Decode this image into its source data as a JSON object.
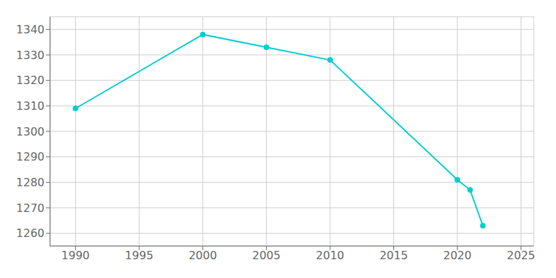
{
  "chart_data": {
    "type": "line",
    "x": [
      1990,
      2000,
      2005,
      2010,
      2020,
      2021,
      2022
    ],
    "values": [
      1309,
      1338,
      1333,
      1328,
      1281,
      1277,
      1263
    ],
    "color": "#00CED1",
    "marker": "circle",
    "xlim": [
      1988,
      2026
    ],
    "ylim": [
      1255,
      1345
    ],
    "xticks": [
      1990,
      1995,
      2000,
      2005,
      2010,
      2015,
      2020,
      2025
    ],
    "yticks": [
      1260,
      1270,
      1280,
      1290,
      1300,
      1310,
      1320,
      1330,
      1340
    ],
    "grid": true
  }
}
